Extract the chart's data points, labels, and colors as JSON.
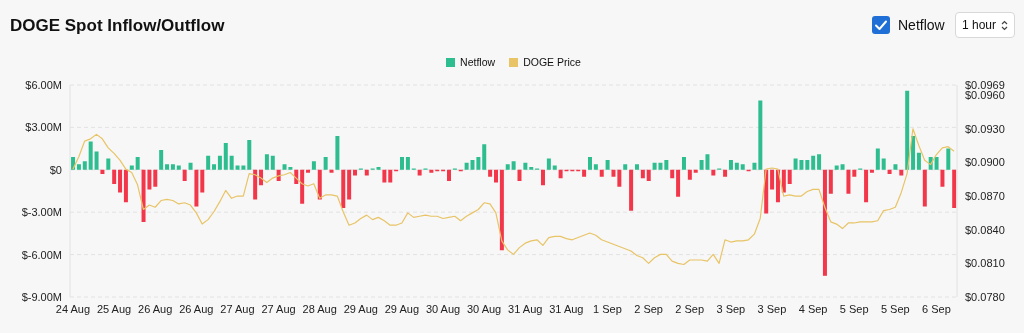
{
  "chart_data": {
    "type": "bar",
    "title": "DOGE Spot Inflow/Outflow",
    "annotations": [
      "Netflow",
      "1 hour"
    ],
    "categories": [
      "24 Aug",
      null,
      null,
      null,
      null,
      null,
      null,
      "25 Aug",
      null,
      null,
      null,
      null,
      null,
      null,
      "26 Aug",
      null,
      null,
      null,
      null,
      null,
      null,
      "26 Aug",
      null,
      null,
      null,
      null,
      null,
      null,
      "27 Aug",
      null,
      null,
      null,
      null,
      null,
      null,
      "27 Aug",
      null,
      null,
      null,
      null,
      null,
      null,
      "28 Aug",
      null,
      null,
      null,
      null,
      null,
      null,
      "29 Aug",
      null,
      null,
      null,
      null,
      null,
      null,
      "29 Aug",
      null,
      null,
      null,
      null,
      null,
      null,
      "30 Aug",
      null,
      null,
      null,
      null,
      null,
      null,
      "30 Aug",
      null,
      null,
      null,
      null,
      null,
      null,
      "31 Aug",
      null,
      null,
      null,
      null,
      null,
      null,
      "31 Aug",
      null,
      null,
      null,
      null,
      null,
      null,
      "1 Sep",
      null,
      null,
      null,
      null,
      null,
      null,
      "2 Sep",
      null,
      null,
      null,
      null,
      null,
      null,
      "2 Sep",
      null,
      null,
      null,
      null,
      null,
      null,
      "3 Sep",
      null,
      null,
      null,
      null,
      null,
      null,
      "3 Sep",
      null,
      null,
      null,
      null,
      null,
      null,
      "4 Sep",
      null,
      null,
      null,
      null,
      null,
      null,
      "5 Sep",
      null,
      null,
      null,
      null,
      null,
      null,
      "5 Sep",
      null,
      null,
      null,
      null,
      null,
      null,
      "6 Sep",
      null,
      null,
      null
    ],
    "series": [
      {
        "name": "Netflow",
        "color": "#2dbd8f",
        "values": [
          0.9,
          0.4,
          0.6,
          2.0,
          1.3,
          -0.3,
          0.8,
          -1.0,
          -1.6,
          -2.3,
          0.3,
          0.9,
          -3.7,
          -1.4,
          -1.2,
          1.4,
          0.4,
          0.4,
          0.3,
          -0.8,
          0.5,
          -2.6,
          -1.6,
          1.0,
          0.4,
          1.0,
          1.9,
          1.0,
          0.3,
          0.3,
          2.1,
          -2.1,
          -1.1,
          1.1,
          1.0,
          -0.8,
          0.4,
          0.2,
          -1.0,
          -2.4,
          -0.2,
          0.6,
          -2.1,
          0.9,
          -0.2,
          2.4,
          -2.7,
          -2.1,
          -0.4,
          0.1,
          -0.4,
          0.1,
          0.2,
          -0.9,
          -0.9,
          -0.1,
          0.9,
          0.9,
          0.1,
          -0.4,
          0.1,
          -0.2,
          -0.1,
          -0.1,
          -0.8,
          0.1,
          -0.1,
          0.5,
          0.7,
          0.9,
          1.8,
          -0.5,
          -0.9,
          -5.7,
          0.4,
          0.6,
          -0.8,
          0.5,
          0.2,
          0.1,
          -1.1,
          0.8,
          0.3,
          -0.6,
          -0.1,
          -0.1,
          -0.1,
          -0.5,
          0.9,
          0.4,
          -0.5,
          0.7,
          -0.5,
          -1.2,
          0.4,
          -2.9,
          0.4,
          -0.6,
          -0.8,
          0.5,
          0.5,
          0.7,
          -0.6,
          -1.9,
          0.9,
          -0.7,
          -0.2,
          0.7,
          1.1,
          -0.4,
          0.1,
          -0.5,
          0.7,
          0.5,
          0.4,
          -0.1,
          0.5,
          4.9,
          -3.1,
          -1.4,
          -2.3,
          -1.6,
          -1.0,
          0.8,
          0.7,
          0.7,
          1.0,
          1.1,
          -7.5,
          -1.7,
          0.3,
          0.4,
          -1.7,
          -0.5,
          0.1,
          -2.3,
          -0.2,
          1.5,
          0.8,
          -0.3,
          0.4,
          -0.4,
          5.6,
          2.4,
          1.2,
          -2.6,
          0.9,
          0.9,
          -1.2,
          1.5,
          -2.7
        ],
        "colors": [
          "#2dbd8f",
          "#2dbd8f",
          "#2dbd8f",
          "#2dbd8f",
          "#2dbd8f",
          "#f2374b",
          "#2dbd8f",
          "#f2374b",
          "#f2374b",
          "#f2374b",
          "#2dbd8f",
          "#2dbd8f",
          "#f2374b",
          "#f2374b",
          "#f2374b",
          "#2dbd8f",
          "#2dbd8f",
          "#2dbd8f",
          "#2dbd8f",
          "#f2374b",
          "#2dbd8f",
          "#f2374b",
          "#f2374b",
          "#2dbd8f",
          "#2dbd8f",
          "#2dbd8f",
          "#2dbd8f",
          "#2dbd8f",
          "#2dbd8f",
          "#2dbd8f",
          "#2dbd8f",
          "#f2374b",
          "#f2374b",
          "#2dbd8f",
          "#2dbd8f",
          "#f2374b",
          "#2dbd8f",
          "#2dbd8f",
          "#f2374b",
          "#f2374b",
          "#f2374b",
          "#2dbd8f",
          "#f2374b",
          "#2dbd8f",
          "#f2374b",
          "#2dbd8f",
          "#f2374b",
          "#f2374b",
          "#f2374b",
          "#2dbd8f",
          "#f2374b",
          "#2dbd8f",
          "#2dbd8f",
          "#f2374b",
          "#f2374b",
          "#f2374b",
          "#2dbd8f",
          "#2dbd8f",
          "#2dbd8f",
          "#f2374b",
          "#2dbd8f",
          "#f2374b",
          "#f2374b",
          "#f2374b",
          "#f2374b",
          "#2dbd8f",
          "#f2374b",
          "#2dbd8f",
          "#2dbd8f",
          "#2dbd8f",
          "#2dbd8f",
          "#f2374b",
          "#f2374b",
          "#f2374b",
          "#2dbd8f",
          "#2dbd8f",
          "#f2374b",
          "#2dbd8f",
          "#2dbd8f",
          "#2dbd8f",
          "#f2374b",
          "#2dbd8f",
          "#2dbd8f",
          "#f2374b",
          "#f2374b",
          "#f2374b",
          "#f2374b",
          "#f2374b",
          "#2dbd8f",
          "#2dbd8f",
          "#f2374b",
          "#2dbd8f",
          "#f2374b",
          "#f2374b",
          "#2dbd8f",
          "#f2374b",
          "#2dbd8f",
          "#f2374b",
          "#f2374b",
          "#2dbd8f",
          "#2dbd8f",
          "#2dbd8f",
          "#f2374b",
          "#f2374b",
          "#2dbd8f",
          "#f2374b",
          "#f2374b",
          "#2dbd8f",
          "#2dbd8f",
          "#f2374b",
          "#2dbd8f",
          "#f2374b",
          "#2dbd8f",
          "#2dbd8f",
          "#2dbd8f",
          "#f2374b",
          "#2dbd8f",
          "#2dbd8f",
          "#f2374b",
          "#f2374b",
          "#f2374b",
          "#f2374b",
          "#f2374b",
          "#2dbd8f",
          "#2dbd8f",
          "#2dbd8f",
          "#2dbd8f",
          "#2dbd8f",
          "#f2374b",
          "#f2374b",
          "#2dbd8f",
          "#2dbd8f",
          "#f2374b",
          "#f2374b",
          "#2dbd8f",
          "#f2374b",
          "#f2374b",
          "#2dbd8f",
          "#2dbd8f",
          "#f2374b",
          "#2dbd8f",
          "#f2374b",
          "#2dbd8f",
          "#2dbd8f",
          "#2dbd8f",
          "#f2374b",
          "#2dbd8f",
          "#2dbd8f",
          "#f2374b",
          "#2dbd8f",
          "#f2374b"
        ]
      },
      {
        "name": "DOGE Price",
        "type": "line",
        "axis": "y2",
        "color": "#e8c466",
        "values": [
          0.0894,
          0.0905,
          0.0919,
          0.0921,
          0.0925,
          0.0921,
          0.0913,
          0.0908,
          0.0902,
          0.0894,
          0.0891,
          0.088,
          0.0858,
          0.0862,
          0.086,
          0.0866,
          0.0867,
          0.0866,
          0.0863,
          0.0864,
          0.0862,
          0.0855,
          0.0845,
          0.0849,
          0.0856,
          0.0865,
          0.0875,
          0.0868,
          0.087,
          0.087,
          0.089,
          0.0889,
          0.0886,
          0.0882,
          0.0886,
          0.0888,
          0.0889,
          0.0891,
          0.0886,
          0.0881,
          0.0879,
          0.0881,
          0.0868,
          0.0871,
          0.0871,
          0.087,
          0.0856,
          0.0844,
          0.0846,
          0.085,
          0.0853,
          0.0849,
          0.0851,
          0.0848,
          0.0844,
          0.0844,
          0.0846,
          0.0855,
          0.0851,
          0.0852,
          0.0853,
          0.0852,
          0.0852,
          0.085,
          0.0851,
          0.0852,
          0.0848,
          0.0852,
          0.0855,
          0.0858,
          0.0864,
          0.0863,
          0.0855,
          0.083,
          0.0822,
          0.0818,
          0.0824,
          0.0828,
          0.083,
          0.0831,
          0.0826,
          0.0833,
          0.0834,
          0.0834,
          0.0832,
          0.0831,
          0.0833,
          0.0835,
          0.0837,
          0.0835,
          0.0831,
          0.0829,
          0.0827,
          0.0825,
          0.0823,
          0.0821,
          0.0817,
          0.0815,
          0.081,
          0.0815,
          0.0818,
          0.0818,
          0.0812,
          0.081,
          0.0809,
          0.0813,
          0.0813,
          0.0813,
          0.0812,
          0.0818,
          0.081,
          0.0831,
          0.0829,
          0.083,
          0.083,
          0.0831,
          0.0836,
          0.085,
          0.0894,
          0.0895,
          0.0894,
          0.087,
          0.0871,
          0.087,
          0.087,
          0.0874,
          0.0876,
          0.0876,
          0.086,
          0.0847,
          0.0845,
          0.0841,
          0.0846,
          0.0846,
          0.0847,
          0.0847,
          0.0847,
          0.0848,
          0.0857,
          0.0858,
          0.086,
          0.0873,
          0.089,
          0.093,
          0.0915,
          0.0902,
          0.0898,
          0.0907,
          0.0913,
          0.0914,
          0.091
        ]
      }
    ],
    "ylim": [
      -9,
      6
    ],
    "yticks": [
      {
        "value": -9,
        "label": "$-9.00M"
      },
      {
        "value": -6,
        "label": "$-6.00M"
      },
      {
        "value": -3,
        "label": "$-3.00M"
      },
      {
        "value": 0,
        "label": "$0"
      },
      {
        "value": 3,
        "label": "$3.00M"
      },
      {
        "value": 6,
        "label": "$6.00M"
      }
    ],
    "y2lim": [
      0.078,
      0.0969
    ],
    "y2ticks": [
      {
        "value": 0.078,
        "label": "$0.0780"
      },
      {
        "value": 0.081,
        "label": "$0.0810"
      },
      {
        "value": 0.084,
        "label": "$0.0840"
      },
      {
        "value": 0.087,
        "label": "$0.0870"
      },
      {
        "value": 0.09,
        "label": "$0.0900"
      },
      {
        "value": 0.093,
        "label": "$0.0930"
      },
      {
        "value": 0.096,
        "label": "$0.0960"
      },
      {
        "value": 0.0969,
        "label": "$0.0969"
      }
    ],
    "grid": "y",
    "legend": "top"
  }
}
